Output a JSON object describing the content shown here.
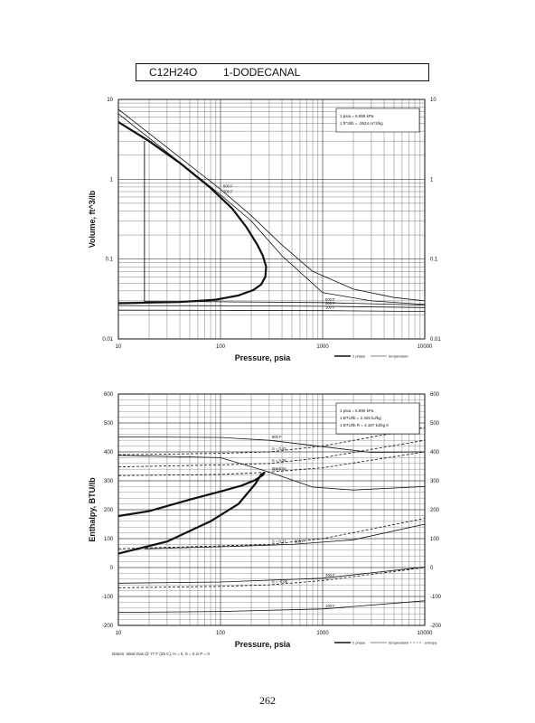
{
  "header": {
    "formula": "C12H24O",
    "name": "1-DODECANAL"
  },
  "page_number": "262",
  "footnote": "Datum: Ideal Gas @ 77 F (25 C), H = 0, S = 0 in P = 0",
  "chart_data": [
    {
      "type": "line",
      "title": "",
      "xlabel": "Pressure,  psia",
      "ylabel": "Volume,  ft^3/lb",
      "x_scale": "log",
      "y_scale": "log",
      "xlim": [
        10,
        10000
      ],
      "ylim": [
        0.01,
        10
      ],
      "x_ticks": [
        "10",
        "100",
        "1000",
        "10000"
      ],
      "y_ticks": [
        "0.01",
        "0.1",
        "1",
        "10"
      ],
      "grid": true,
      "info_box": [
        "1 psia  =  6.895 kPa",
        "1 ft^3/lb  =  .0624 m^3/kg"
      ],
      "legend": {
        "position": "bottom-right",
        "items": [
          "2 phase",
          "temperature"
        ]
      },
      "series": [
        {
          "name": "2 phase",
          "style": "thick",
          "x": [
            10,
            20,
            40,
            80,
            130,
            180,
            230,
            260,
            280,
            275,
            250,
            210,
            150,
            90,
            40,
            20,
            10
          ],
          "y": [
            5.2,
            3.0,
            1.6,
            0.78,
            0.43,
            0.25,
            0.15,
            0.11,
            0.08,
            0.06,
            0.048,
            0.041,
            0.035,
            0.031,
            0.029,
            0.0285,
            0.028
          ]
        },
        {
          "name": "800 F",
          "style": "thin",
          "x": [
            10,
            50,
            100,
            200,
            400,
            800,
            2000,
            5000,
            10000
          ],
          "y": [
            7.5,
            1.5,
            0.75,
            0.35,
            0.15,
            0.07,
            0.042,
            0.033,
            0.03
          ]
        },
        {
          "name": "700 F",
          "style": "thin",
          "x": [
            10,
            50,
            100,
            200,
            400,
            1000,
            3000,
            10000
          ],
          "y": [
            6.6,
            1.3,
            0.64,
            0.3,
            0.11,
            0.038,
            0.03,
            0.027
          ]
        },
        {
          "name": "500 F",
          "style": "thin",
          "x": [
            18,
            100,
            1000,
            10000
          ],
          "y": [
            0.0295,
            0.0292,
            0.0285,
            0.0265
          ]
        },
        {
          "name": "300 F",
          "style": "thin",
          "x": [
            10,
            100,
            1000,
            10000
          ],
          "y": [
            0.0262,
            0.026,
            0.0256,
            0.0247
          ]
        },
        {
          "name": "100 F",
          "style": "thin",
          "x": [
            10,
            100,
            1000,
            10000
          ],
          "y": [
            0.0229,
            0.0228,
            0.0226,
            0.0221
          ]
        }
      ],
      "annotations": [
        "800 F",
        "700 F",
        "500 F",
        "300 F",
        "100 F"
      ]
    },
    {
      "type": "line",
      "title": "",
      "xlabel": "Pressure,  psia",
      "ylabel": "Enthalpy,  BTU/lb",
      "x_scale": "log",
      "y_scale": "linear",
      "xlim": [
        10,
        10000
      ],
      "ylim": [
        -200,
        600
      ],
      "x_ticks": [
        "10",
        "100",
        "1000",
        "10000"
      ],
      "y_ticks": [
        "-200",
        "-100",
        "0",
        "100",
        "200",
        "300",
        "400",
        "500",
        "600"
      ],
      "grid": true,
      "info_box": [
        "1 psia  =  6.895 kPa",
        "1 BTU/lb  =  2.326 kJ/kg",
        "1 BTU/lb R  =  4.187 kJ/kg K"
      ],
      "legend": {
        "position": "bottom-right",
        "items": [
          "2 phase",
          "temperature",
          "entropy"
        ]
      },
      "series": [
        {
          "name": "2 phase",
          "style": "thick",
          "x": [
            10,
            30,
            80,
            150,
            220,
            250,
            270,
            260,
            220,
            160,
            100,
            50,
            20,
            10
          ],
          "y": [
            48,
            90,
            160,
            220,
            290,
            322,
            328,
            320,
            303,
            283,
            263,
            235,
            195,
            178
          ]
        },
        {
          "name": "800 F",
          "style": "thin",
          "x": [
            10,
            100,
            300,
            1000,
            3000,
            10000
          ],
          "y": [
            452,
            450,
            440,
            418,
            398,
            400
          ]
        },
        {
          "name": "700 F",
          "style": "thin",
          "x": [
            10,
            100,
            300,
            800,
            2000,
            10000
          ],
          "y": [
            388,
            380,
            330,
            278,
            268,
            280
          ]
        },
        {
          "name": "500 F",
          "style": "thin",
          "x": [
            18,
            100,
            500,
            2000,
            10000
          ],
          "y": [
            65,
            72,
            80,
            96,
            150
          ]
        },
        {
          "name": "300 F",
          "style": "thin",
          "x": [
            10,
            100,
            1000,
            10000
          ],
          "y": [
            -54,
            -50,
            -37,
            2
          ]
        },
        {
          "name": "100 F",
          "style": "thin",
          "x": [
            10,
            100,
            1000,
            10000
          ],
          "y": [
            -155,
            -152,
            -143,
            -115
          ]
        },
        {
          "name": "S = 0.42",
          "style": "dashed",
          "x": [
            10,
            100,
            300,
            1000,
            10000
          ],
          "y": [
            390,
            395,
            400,
            420,
            485
          ]
        },
        {
          "name": "S = 0.38",
          "style": "dashed",
          "x": [
            10,
            100,
            300,
            1000,
            10000
          ],
          "y": [
            348,
            355,
            360,
            380,
            440
          ]
        },
        {
          "name": "S = 0.38b",
          "style": "dashed",
          "x": [
            10,
            100,
            300,
            1000,
            10000
          ],
          "y": [
            318,
            322,
            330,
            345,
            400
          ]
        },
        {
          "name": "S = 0.17",
          "style": "dashed",
          "x": [
            10,
            100,
            300,
            1000,
            10000
          ],
          "y": [
            65,
            75,
            80,
            100,
            170
          ]
        },
        {
          "name": "S = -0.06",
          "style": "dashed",
          "x": [
            10,
            100,
            300,
            1000,
            10000
          ],
          "y": [
            -70,
            -65,
            -60,
            -45,
            0
          ]
        }
      ],
      "annotations": [
        "800 F",
        "S = 0.42",
        "S = 0.38",
        "S = 0.38",
        "700 F",
        "S = 0.17",
        "500 F",
        "300 F",
        "S = -0.06",
        "100 F"
      ]
    }
  ]
}
